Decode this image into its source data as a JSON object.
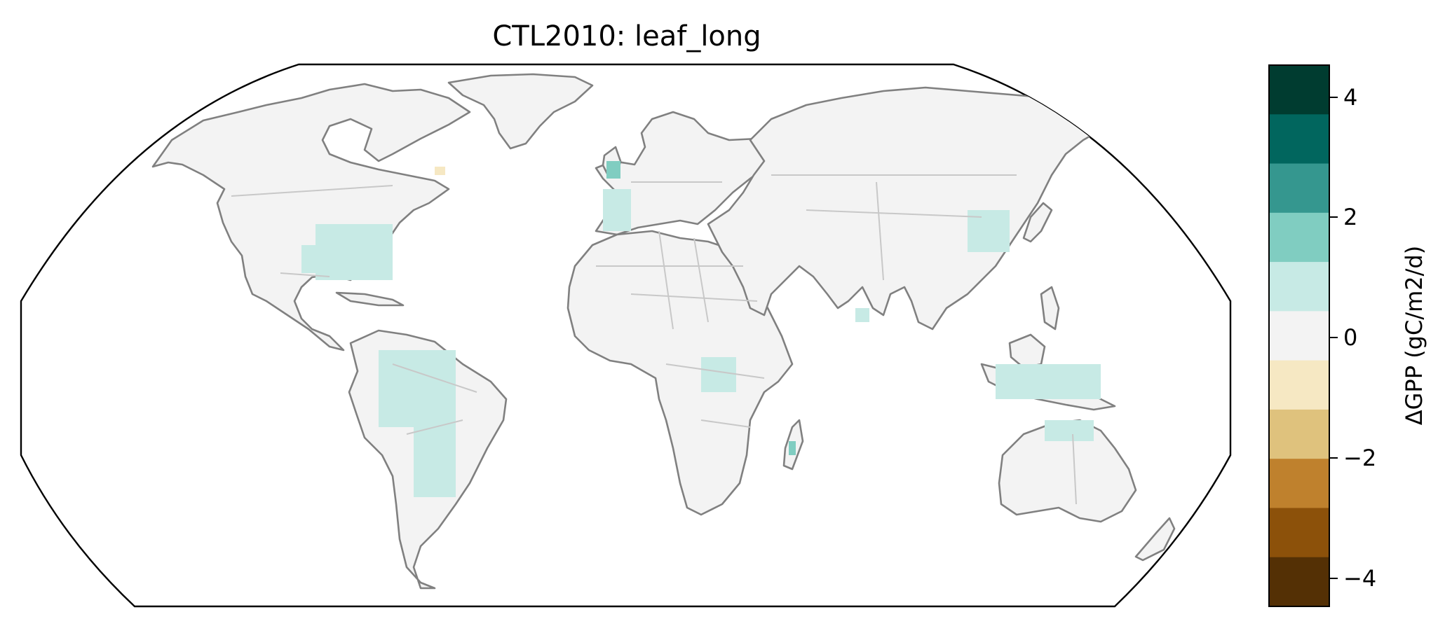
{
  "title": "CTL2010: leaf_long",
  "colorbar": {
    "label": "ΔGPP (gC/m2/d)",
    "vmin": -4.5,
    "vmax": 4.5,
    "ticks": [
      {
        "value": 4,
        "label": "4"
      },
      {
        "value": 2,
        "label": "2"
      },
      {
        "value": 0,
        "label": "0"
      },
      {
        "value": -2,
        "label": "−2"
      },
      {
        "value": -4,
        "label": "−4"
      }
    ],
    "levels": [
      {
        "from": 3.5,
        "to": 4.5,
        "color": "#003c30"
      },
      {
        "from": 2.5,
        "to": 3.5,
        "color": "#01665e"
      },
      {
        "from": 1.5,
        "to": 2.5,
        "color": "#35978f"
      },
      {
        "from": 0.5,
        "to": 1.5,
        "color": "#80cdc1"
      },
      {
        "from": -0.5,
        "to": 0.5,
        "color": "#c7eae5"
      },
      {
        "from": -1.5,
        "to": -0.5,
        "color": "#f3f3f3"
      },
      {
        "from": -2.5,
        "to": -1.5,
        "color": "#f6e8c3"
      },
      {
        "from": -3.5,
        "to": -2.5,
        "color": "#dfc27d"
      },
      {
        "from": -4.5,
        "to": -3.5,
        "color": "#bf812d"
      }
    ],
    "extra_levels": [
      {
        "color": "#8c510a"
      },
      {
        "color": "#543005"
      }
    ]
  },
  "map": {
    "projection": "Robinson",
    "land_color": "#f3f3f3",
    "coast_color": "#808080",
    "border_color": "#c8c8c8"
  }
}
